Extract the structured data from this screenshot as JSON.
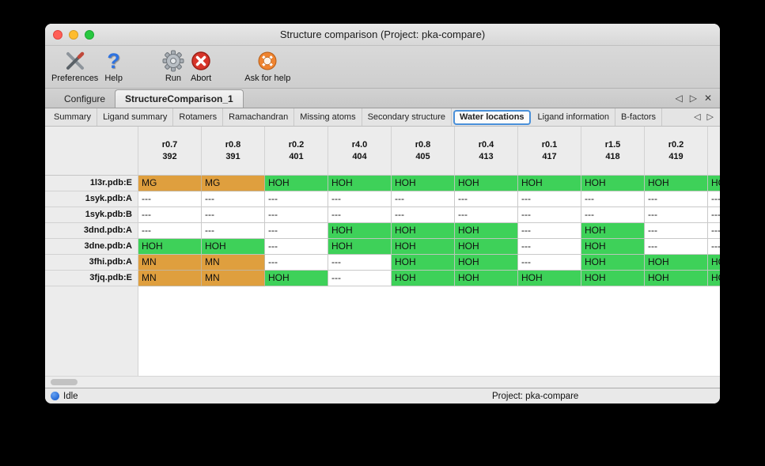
{
  "window": {
    "title": "Structure comparison (Project: pka-compare)"
  },
  "toolbar": {
    "items": [
      {
        "label": "Preferences",
        "icon": "tools-icon"
      },
      {
        "label": "Help",
        "icon": "question-mark-icon"
      },
      {
        "label": "Run",
        "icon": "gear-icon"
      },
      {
        "label": "Abort",
        "icon": "abort-icon"
      },
      {
        "label": "Ask for help",
        "icon": "lifebuoy-icon"
      }
    ]
  },
  "tabs": {
    "items": [
      {
        "label": "Configure"
      },
      {
        "label": "StructureComparison_1"
      }
    ],
    "nav": {
      "left": "◁",
      "right": "▷",
      "close": "✕"
    }
  },
  "subtabs": {
    "items": [
      "Summary",
      "Ligand summary",
      "Rotamers",
      "Ramachandran",
      "Missing atoms",
      "Secondary structure",
      "Water locations",
      "Ligand information",
      "B-factors"
    ],
    "active": "Water locations",
    "nav": {
      "left": "◁",
      "right": "▷"
    }
  },
  "table": {
    "columns": [
      [
        "r0.7",
        "392"
      ],
      [
        "r0.8",
        "391"
      ],
      [
        "r0.2",
        "401"
      ],
      [
        "r4.0",
        "404"
      ],
      [
        "r0.8",
        "405"
      ],
      [
        "r0.4",
        "413"
      ],
      [
        "r0.1",
        "417"
      ],
      [
        "r1.5",
        "418"
      ],
      [
        "r0.2",
        "419"
      ],
      [
        "",
        ""
      ]
    ],
    "rows": [
      {
        "label": "1l3r.pdb:E",
        "cells": [
          [
            "MG",
            "orange"
          ],
          [
            "MG",
            "orange"
          ],
          [
            "HOH",
            "green"
          ],
          [
            "HOH",
            "green"
          ],
          [
            "HOH",
            "green"
          ],
          [
            "HOH",
            "green"
          ],
          [
            "HOH",
            "green"
          ],
          [
            "HOH",
            "green"
          ],
          [
            "HOH",
            "green"
          ],
          [
            "HOH",
            "green"
          ]
        ]
      },
      {
        "label": "1syk.pdb:A",
        "cells": [
          [
            "---",
            "none"
          ],
          [
            "---",
            "none"
          ],
          [
            "---",
            "none"
          ],
          [
            "---",
            "none"
          ],
          [
            "---",
            "none"
          ],
          [
            "---",
            "none"
          ],
          [
            "---",
            "none"
          ],
          [
            "---",
            "none"
          ],
          [
            "---",
            "none"
          ],
          [
            "---",
            "none"
          ]
        ]
      },
      {
        "label": "1syk.pdb:B",
        "cells": [
          [
            "---",
            "none"
          ],
          [
            "---",
            "none"
          ],
          [
            "---",
            "none"
          ],
          [
            "---",
            "none"
          ],
          [
            "---",
            "none"
          ],
          [
            "---",
            "none"
          ],
          [
            "---",
            "none"
          ],
          [
            "---",
            "none"
          ],
          [
            "---",
            "none"
          ],
          [
            "---",
            "none"
          ]
        ]
      },
      {
        "label": "3dnd.pdb:A",
        "cells": [
          [
            "---",
            "none"
          ],
          [
            "---",
            "none"
          ],
          [
            "---",
            "none"
          ],
          [
            "HOH",
            "green"
          ],
          [
            "HOH",
            "green"
          ],
          [
            "HOH",
            "green"
          ],
          [
            "---",
            "none"
          ],
          [
            "HOH",
            "green"
          ],
          [
            "---",
            "none"
          ],
          [
            "---",
            "none"
          ]
        ]
      },
      {
        "label": "3dne.pdb:A",
        "cells": [
          [
            "HOH",
            "green"
          ],
          [
            "HOH",
            "green"
          ],
          [
            "---",
            "none"
          ],
          [
            "HOH",
            "green"
          ],
          [
            "HOH",
            "green"
          ],
          [
            "HOH",
            "green"
          ],
          [
            "---",
            "none"
          ],
          [
            "HOH",
            "green"
          ],
          [
            "---",
            "none"
          ],
          [
            "---",
            "none"
          ]
        ]
      },
      {
        "label": "3fhi.pdb:A",
        "cells": [
          [
            "MN",
            "orange"
          ],
          [
            "MN",
            "orange"
          ],
          [
            "---",
            "none"
          ],
          [
            "---",
            "none"
          ],
          [
            "HOH",
            "green"
          ],
          [
            "HOH",
            "green"
          ],
          [
            "---",
            "none"
          ],
          [
            "HOH",
            "green"
          ],
          [
            "HOH",
            "green"
          ],
          [
            "HOH",
            "green"
          ]
        ]
      },
      {
        "label": "3fjq.pdb:E",
        "cells": [
          [
            "MN",
            "orange"
          ],
          [
            "MN",
            "orange"
          ],
          [
            "HOH",
            "green"
          ],
          [
            "---",
            "none"
          ],
          [
            "HOH",
            "green"
          ],
          [
            "HOH",
            "green"
          ],
          [
            "HOH",
            "green"
          ],
          [
            "HOH",
            "green"
          ],
          [
            "HOH",
            "green"
          ],
          [
            "HOH",
            "green"
          ]
        ]
      }
    ]
  },
  "statusbar": {
    "status": "Idle",
    "project": "Project: pka-compare"
  },
  "colors": {
    "green": "#3ed159",
    "orange": "#df9f3e",
    "focus_ring": "#4a90d9"
  }
}
